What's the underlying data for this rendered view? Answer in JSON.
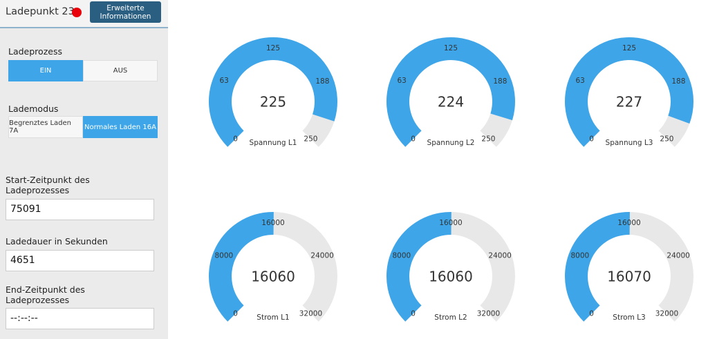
{
  "header": {
    "title": "Ladepunkt 23",
    "button": "Erweiterte Informationen"
  },
  "sidebar": {
    "charging_label": "Ladeprozess",
    "charging_options": [
      "EIN",
      "AUS"
    ],
    "charging_selected": 0,
    "mode_label": "Lademodus",
    "mode_options": [
      "Begrenztes Laden 7A",
      "Normales Laden 16A"
    ],
    "mode_selected": 1,
    "fields": [
      {
        "label": "Start-Zeitpunkt des Ladeprozesses",
        "value": "75091"
      },
      {
        "label": "Ladedauer in Sekunden",
        "value": "4651"
      },
      {
        "label": "End-Zeitpunkt des Ladeprozesses",
        "value": "--:--:--"
      }
    ]
  },
  "gauges": [
    {
      "name": "Spannung L1",
      "value": 225,
      "range": [
        0,
        250
      ],
      "ticks": [
        0,
        63,
        125,
        188,
        250
      ]
    },
    {
      "name": "Spannung L2",
      "value": 224,
      "range": [
        0,
        250
      ],
      "ticks": [
        0,
        63,
        125,
        188,
        250
      ]
    },
    {
      "name": "Spannung L3",
      "value": 227,
      "range": [
        0,
        250
      ],
      "ticks": [
        0,
        63,
        125,
        188,
        250
      ]
    },
    {
      "name": "Strom L1",
      "value": 16060,
      "range": [
        0,
        32000
      ],
      "ticks": [
        0,
        8000,
        16000,
        24000,
        32000
      ]
    },
    {
      "name": "Strom L2",
      "value": 16060,
      "range": [
        0,
        32000
      ],
      "ticks": [
        0,
        8000,
        16000,
        24000,
        32000
      ]
    },
    {
      "name": "Strom L3",
      "value": 16070,
      "range": [
        0,
        32000
      ],
      "ticks": [
        0,
        8000,
        16000,
        24000,
        32000
      ]
    }
  ],
  "colors": {
    "fill": "#3ea6e8",
    "track": "#e8e8e8"
  }
}
